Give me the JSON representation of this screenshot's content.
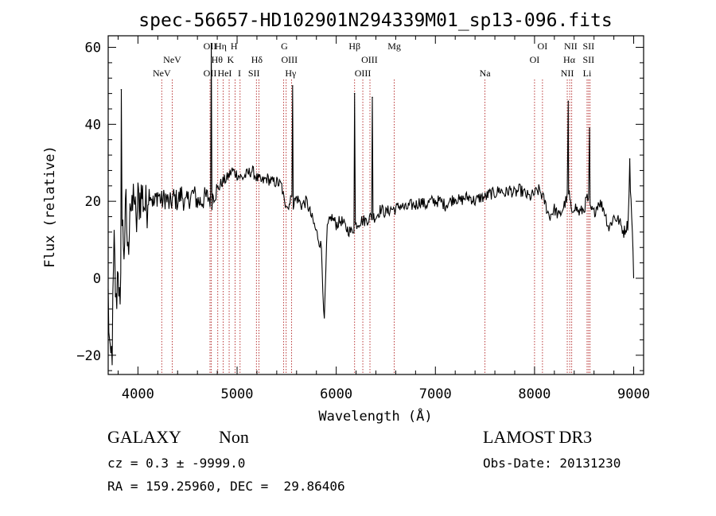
{
  "chart_data": {
    "type": "line",
    "title": "spec-56657-HD102901N294339M01_sp13-096.fits",
    "xlabel": "Wavelength (Å)",
    "ylabel": "Flux (relative)",
    "xlim": [
      3700,
      9100
    ],
    "ylim": [
      -25,
      63
    ],
    "xticks": [
      4000,
      5000,
      6000,
      7000,
      8000,
      9000
    ],
    "yticks": [
      -20,
      0,
      20,
      40,
      60
    ],
    "grid": false,
    "line_color": "#000000",
    "marker_color": "#b22222",
    "series": [
      {
        "x": [
          3700,
          3720,
          3740,
          3760,
          3780,
          3800,
          3820,
          3840,
          3860,
          3880,
          3900,
          3920,
          3940,
          3960,
          3980,
          4000,
          4040,
          4080,
          4120,
          4160,
          4200,
          4240,
          4280,
          4320,
          4360,
          4400,
          4440,
          4480,
          4520,
          4560,
          4600,
          4640,
          4680,
          4720,
          4740,
          4760,
          4800,
          4850,
          4900,
          4950,
          5000,
          5050,
          5100,
          5150,
          5200,
          5250,
          5300,
          5350,
          5400,
          5450,
          5480,
          5500,
          5520,
          5540,
          5560,
          5580,
          5600,
          5650,
          5700,
          5750,
          5800,
          5850,
          5880,
          5895,
          5910,
          5950,
          6000,
          6050,
          6100,
          6150,
          6200,
          6250,
          6300,
          6350,
          6400,
          6450,
          6500,
          6550,
          6600,
          6650,
          6700,
          6750,
          6800,
          6850,
          6900,
          6950,
          7000,
          7050,
          7100,
          7150,
          7200,
          7250,
          7300,
          7350,
          7400,
          7450,
          7500,
          7550,
          7600,
          7650,
          7700,
          7750,
          7800,
          7850,
          7900,
          7950,
          8000,
          8050,
          8100,
          8150,
          8200,
          8250,
          8300,
          8330,
          8350,
          8370,
          8400,
          8450,
          8500,
          8530,
          8560,
          8600,
          8650,
          8700,
          8750,
          8800,
          8850,
          8900,
          8940,
          8960,
          8980,
          9000
        ],
        "values": [
          -5,
          -24,
          -18,
          8,
          -8,
          5,
          -12,
          14,
          8,
          18,
          5,
          22,
          15,
          24,
          12,
          20,
          22,
          18,
          23,
          19,
          22,
          20,
          21,
          19,
          21,
          20,
          22,
          19,
          21,
          22,
          20,
          20,
          21,
          21,
          20,
          22,
          23,
          25,
          26,
          28,
          27,
          26,
          27,
          28,
          26,
          25,
          26,
          25,
          25,
          24,
          19,
          20,
          18,
          22,
          19,
          20,
          21,
          19,
          20,
          16,
          12,
          8,
          -12,
          2,
          13,
          16,
          14,
          15,
          13,
          12,
          14,
          15,
          15,
          16,
          16,
          18,
          17,
          18,
          18,
          19,
          18,
          19,
          19,
          20,
          19,
          20,
          20,
          20,
          19,
          20,
          21,
          20,
          21,
          21,
          20,
          21,
          21,
          22,
          22,
          23,
          22,
          23,
          22,
          23,
          22,
          21,
          22,
          23,
          20,
          16,
          18,
          16,
          19,
          21,
          22,
          17,
          19,
          17,
          18,
          21,
          18,
          17,
          20,
          18,
          13,
          16,
          15,
          12,
          14,
          25,
          17,
          0
        ]
      }
    ],
    "emission_peaks": [
      {
        "x": 3832,
        "y": 49
      },
      {
        "x": 4740,
        "y": 61
      },
      {
        "x": 5560,
        "y": 50
      },
      {
        "x": 6185,
        "y": 48
      },
      {
        "x": 6364,
        "y": 47
      },
      {
        "x": 8340,
        "y": 46
      },
      {
        "x": 8555,
        "y": 39
      },
      {
        "x": 8960,
        "y": 31
      }
    ],
    "line_markers": [
      {
        "label": "NeV",
        "x": 4240,
        "row": 2
      },
      {
        "label": "NeV",
        "x": 4346,
        "row": 1
      },
      {
        "label": "OII",
        "x": 4727,
        "row": 0
      },
      {
        "label": "OII",
        "x": 4727,
        "row": 2
      },
      {
        "label": "Hη",
        "x": 4835,
        "row": 0
      },
      {
        "label": "Hθ",
        "x": 4798,
        "row": 1
      },
      {
        "label": "HeI",
        "x": 4875,
        "row": 2
      },
      {
        "label": "H",
        "x": 4969,
        "row": 0
      },
      {
        "label": "K",
        "x": 4934,
        "row": 1
      },
      {
        "label": "I",
        "x": 5024,
        "row": 2
      },
      {
        "label": "Hδ",
        "x": 5200,
        "row": 1
      },
      {
        "label": "SII",
        "x": 5170,
        "row": 2
      },
      {
        "label": "G",
        "x": 5477,
        "row": 0
      },
      {
        "label": "OIII",
        "x": 5528,
        "row": 1
      },
      {
        "label": "Hγ",
        "x": 5540,
        "row": 2
      },
      {
        "label": "Hβ",
        "x": 6185,
        "row": 0
      },
      {
        "label": "OIII",
        "x": 6335,
        "row": 1
      },
      {
        "label": "OIII",
        "x": 6268,
        "row": 2
      },
      {
        "label": "Mg",
        "x": 6585,
        "row": 0
      },
      {
        "label": "Na",
        "x": 7500,
        "row": 2
      },
      {
        "label": "OI",
        "x": 8080,
        "row": 0
      },
      {
        "label": "OI",
        "x": 8000,
        "row": 1
      },
      {
        "label": "NII",
        "x": 8365,
        "row": 0
      },
      {
        "label": "Hα",
        "x": 8350,
        "row": 1
      },
      {
        "label": "NII",
        "x": 8330,
        "row": 2
      },
      {
        "label": "SII",
        "x": 8545,
        "row": 0
      },
      {
        "label": "SII",
        "x": 8545,
        "row": 1
      },
      {
        "label": "Li",
        "x": 8530,
        "row": 2
      }
    ],
    "marker_lines_x": [
      4240,
      4346,
      4727,
      4740,
      4805,
      4860,
      4920,
      4980,
      5030,
      5195,
      5220,
      5470,
      5495,
      5550,
      6185,
      6268,
      6340,
      6585,
      7500,
      8000,
      8080,
      8330,
      8355,
      8375,
      8530,
      8545,
      8560
    ]
  },
  "info": {
    "object_class": "GALAXY",
    "subclass": "Non",
    "survey": "LAMOST DR3",
    "cz": "cz = 0.3 ± -9999.0",
    "obs_date": "Obs-Date: 20131230",
    "coords": "RA = 159.25960, DEC =  29.86406"
  }
}
